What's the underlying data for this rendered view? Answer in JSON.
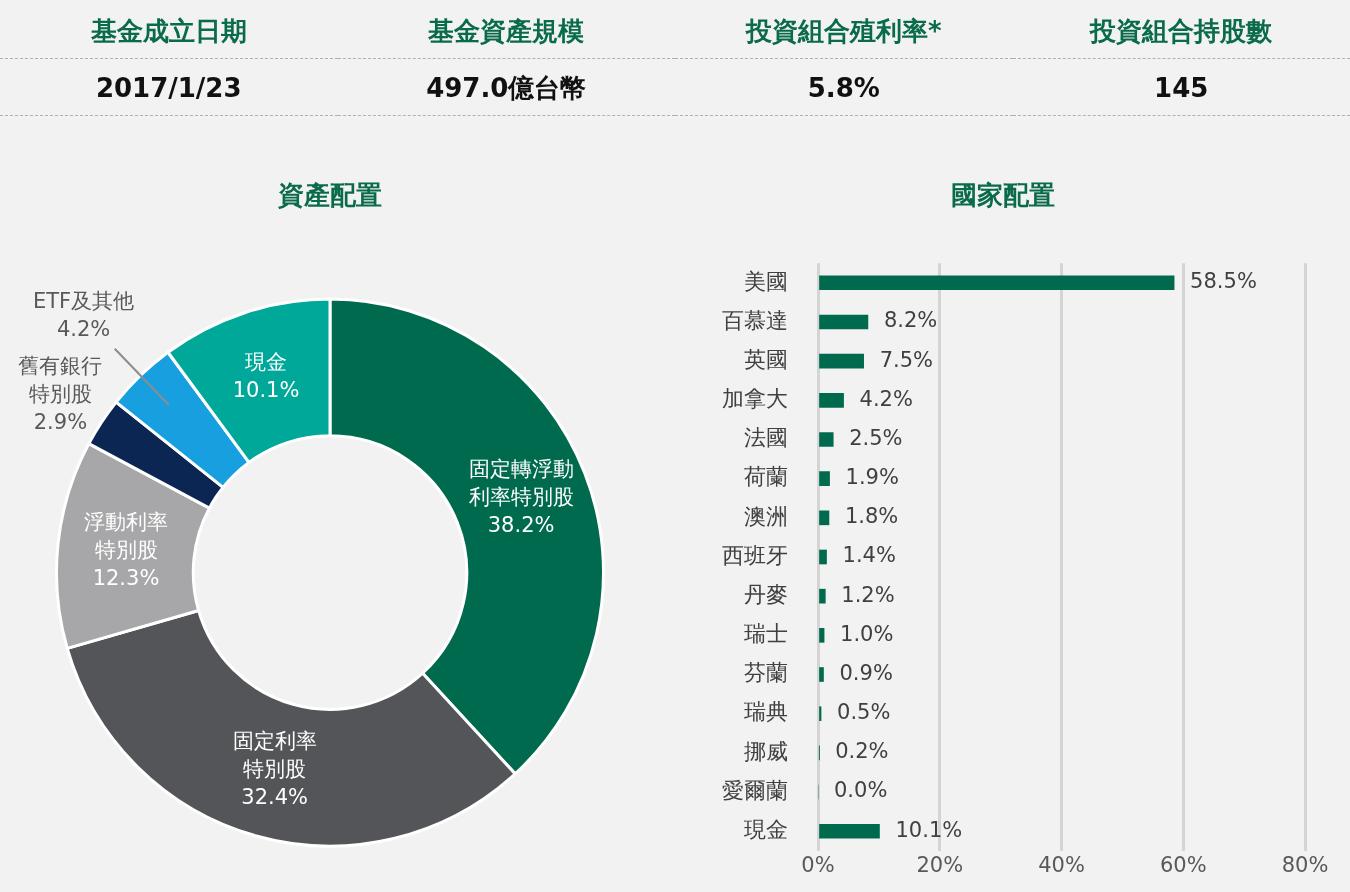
{
  "chart_data": [
    {
      "type": "other",
      "categories": [
        "基金成立日期",
        "基金資產規模",
        "投資組合殖利率*",
        "投資組合持股數"
      ],
      "value_labels": [
        "2017/1/23",
        "497.0億台幣",
        "5.8%",
        "145"
      ]
    },
    {
      "type": "donut",
      "title": "資產配置",
      "categories": [
        "固定轉浮動利率特別股",
        "固定利率特別股",
        "浮動利率特別股",
        "舊有銀行特別股",
        "ETF及其他",
        "現金"
      ],
      "values": [
        38.2,
        32.4,
        12.3,
        2.9,
        4.2,
        10.1
      ],
      "colors": [
        "#006a4e",
        "#545558",
        "#a7a7a9",
        "#0b2653",
        "#189fe0",
        "#00a899"
      ],
      "value_labels": [
        "38.2%",
        "32.4%",
        "12.3%",
        "2.9%",
        "4.2%",
        "10.1%"
      ],
      "legend": false
    },
    {
      "type": "bar",
      "title": "國家配置",
      "orientation": "horizontal",
      "categories": [
        "美國",
        "百慕達",
        "英國",
        "加拿大",
        "法國",
        "荷蘭",
        "澳洲",
        "西班牙",
        "丹麥",
        "瑞士",
        "芬蘭",
        "瑞典",
        "挪威",
        "愛爾蘭",
        "現金"
      ],
      "values": [
        58.5,
        8.2,
        7.5,
        4.2,
        2.5,
        1.9,
        1.8,
        1.4,
        1.2,
        1.0,
        0.9,
        0.5,
        0.2,
        0.0,
        10.1
      ],
      "color": "#006a4e",
      "value_labels": [
        "58.5%",
        "8.2%",
        "7.5%",
        "4.2%",
        "2.5%",
        "1.9%",
        "1.8%",
        "1.4%",
        "1.2%",
        "1.0%",
        "0.9%",
        "0.5%",
        "0.2%",
        "0.0%",
        "10.1%"
      ],
      "xlim": [
        0,
        80
      ],
      "xticks": [
        {
          "value": 0,
          "label": "0%"
        },
        {
          "value": 20,
          "label": "20%"
        },
        {
          "value": 40,
          "label": "40%"
        },
        {
          "value": 60,
          "label": "60%"
        },
        {
          "value": 80,
          "label": "80%"
        }
      ],
      "grid": "x",
      "legend": false
    }
  ]
}
